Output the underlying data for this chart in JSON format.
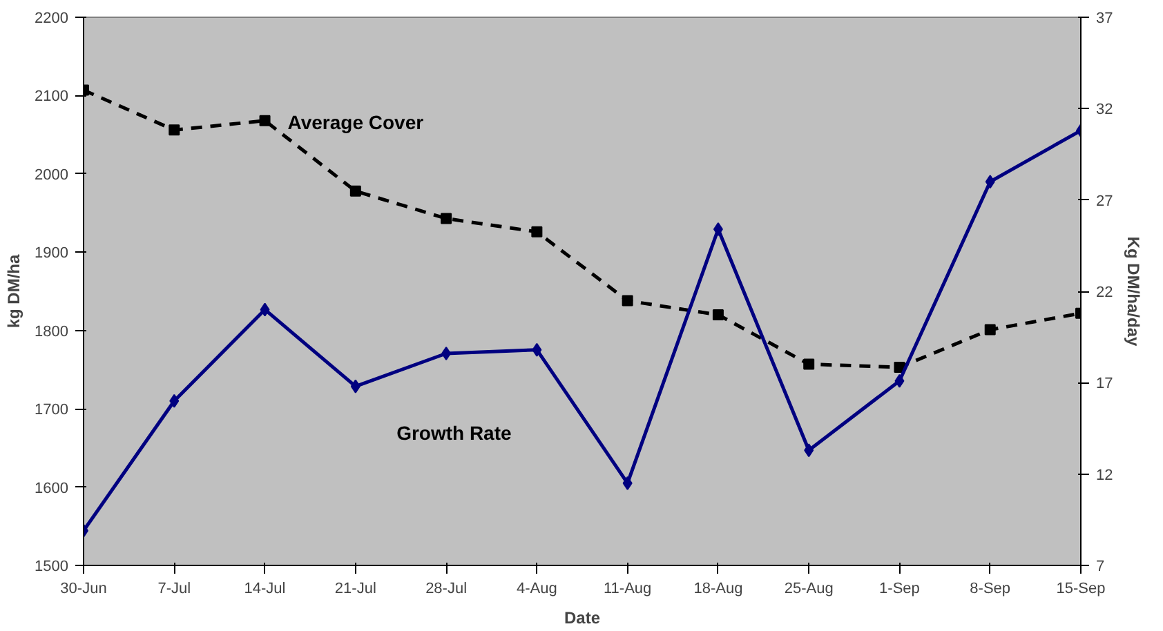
{
  "chart_data": {
    "type": "line",
    "xlabel": "Date",
    "ylabel": "kg DM/ha",
    "y2label": "Kg DM/ha/day",
    "categories": [
      "30-Jun",
      "7-Jul",
      "14-Jul",
      "21-Jul",
      "28-Jul",
      "4-Aug",
      "11-Aug",
      "18-Aug",
      "25-Aug",
      "1-Sep",
      "8-Sep",
      "15-Sep"
    ],
    "series": [
      {
        "name": "Average Cover",
        "color": "#000000",
        "marker": "square",
        "line_style": "dashed",
        "values": [
          2107,
          2056,
          2068,
          1978,
          1943,
          1926,
          1838,
          1820,
          1757,
          1753,
          1801,
          1822
        ]
      },
      {
        "name": "Growth Rate",
        "color": "#000080",
        "marker": "diamond",
        "line_style": "solid",
        "axis": "y2",
        "values": [
          8.9,
          16.0,
          21.0,
          16.8,
          18.6,
          18.8,
          11.5,
          25.4,
          13.3,
          17.1,
          28.0,
          30.8
        ]
      }
    ],
    "ylim": [
      1500,
      2200
    ],
    "yticks": [
      1500,
      1600,
      1700,
      1800,
      1900,
      2000,
      2100,
      2200
    ],
    "y2lim": [
      7,
      37
    ],
    "y2ticks": [
      7,
      12,
      17,
      22,
      27,
      32,
      37
    ],
    "grid": false,
    "legend": false
  }
}
